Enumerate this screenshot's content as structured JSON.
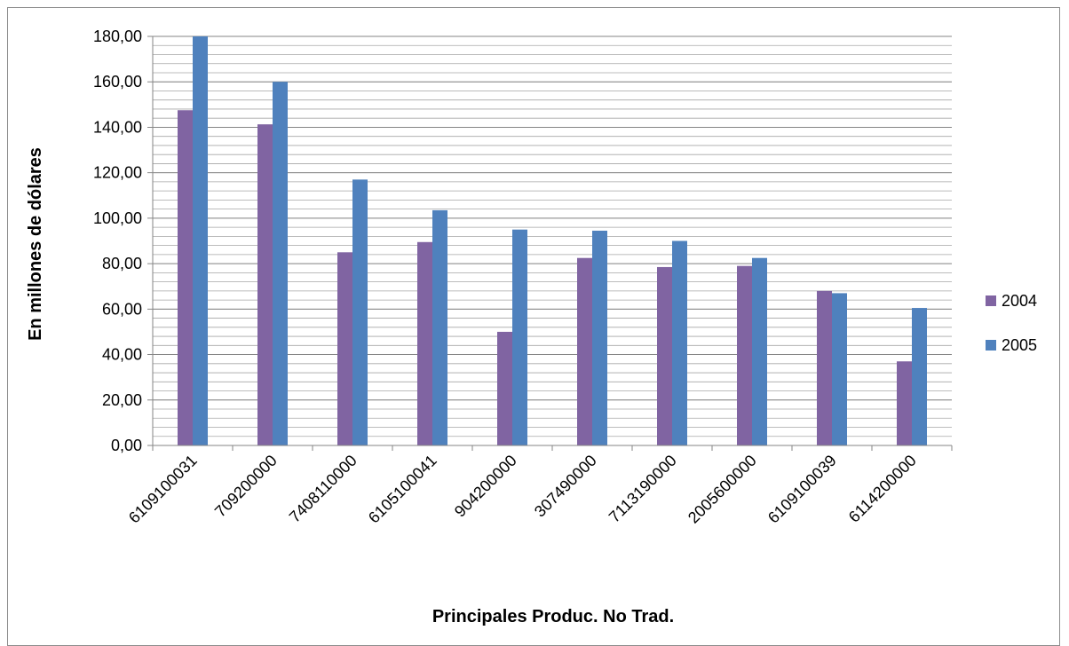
{
  "chart_data": {
    "type": "bar",
    "xlabel": "Principales Produc. No Trad.",
    "ylabel": "En millones de dólares",
    "categories": [
      "6109100031",
      "709200000",
      "7408110000",
      "6105100041",
      "904200000",
      "307490000",
      "7113190000",
      "2005600000",
      "6109100039",
      "6114200000"
    ],
    "series": [
      {
        "name": "2004",
        "color": "#8064a2",
        "values": [
          147.5,
          141.3,
          85.0,
          89.5,
          50.0,
          82.5,
          78.5,
          79.0,
          68.0,
          37.0
        ]
      },
      {
        "name": "2005",
        "color": "#4f81bd",
        "values": [
          180.0,
          160.0,
          117.0,
          103.5,
          95.0,
          94.5,
          90.0,
          82.5,
          67.0,
          60.5
        ]
      }
    ],
    "ylim": [
      0,
      180
    ],
    "ytick_step": 20,
    "yticks": [
      "0,00",
      "20,00",
      "40,00",
      "60,00",
      "80,00",
      "100,00",
      "120,00",
      "140,00",
      "160,00",
      "180,00"
    ],
    "minor_gridlines": true,
    "grid": true,
    "legend": "right"
  }
}
